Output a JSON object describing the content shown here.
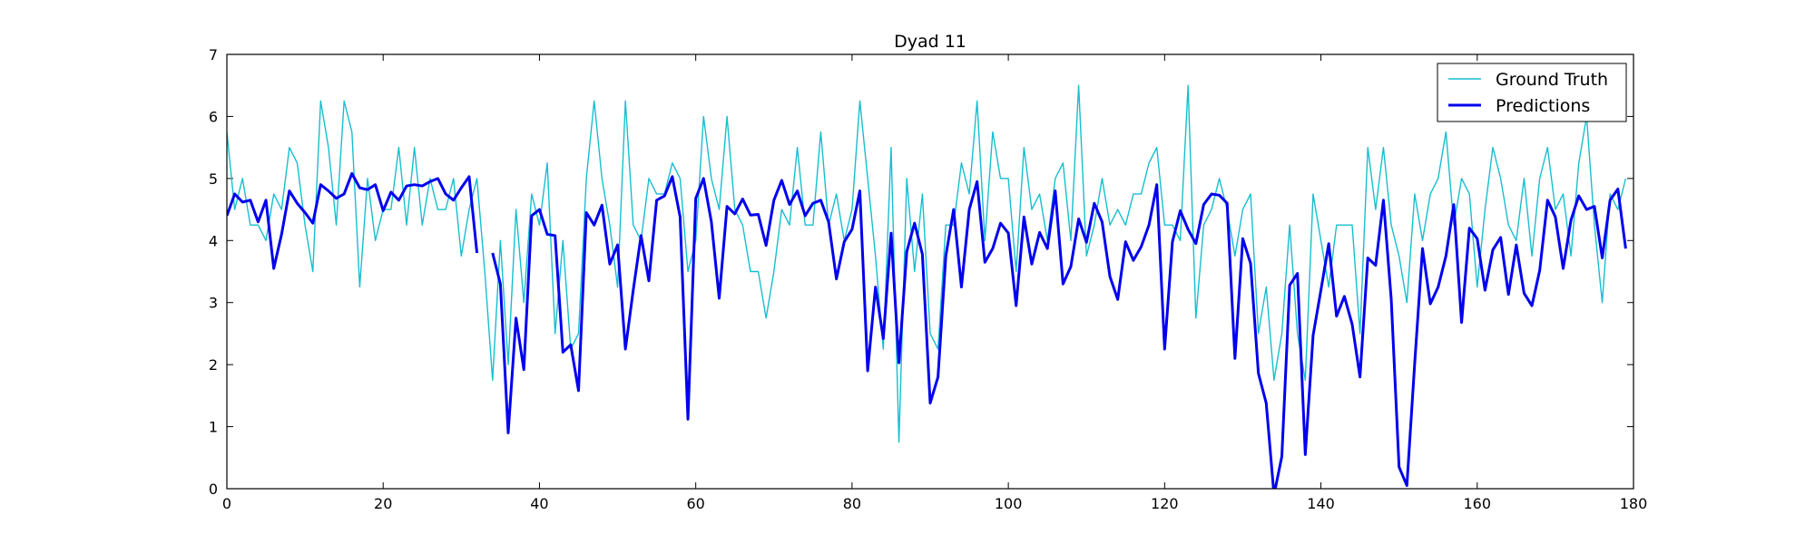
{
  "chart_data": {
    "type": "line",
    "title": "Dyad 11",
    "xlabel": "",
    "ylabel": "",
    "xlim": [
      0,
      180
    ],
    "ylim": [
      0,
      7
    ],
    "xticks": [
      0,
      20,
      40,
      60,
      80,
      100,
      120,
      140,
      160,
      180
    ],
    "yticks": [
      0,
      1,
      2,
      3,
      4,
      5,
      6,
      7
    ],
    "grid": false,
    "legend_position": "top-right",
    "series": [
      {
        "name": "Ground Truth",
        "color": "#17becf",
        "line_width": "thin",
        "values": [
          5.75,
          4.5,
          5.0,
          4.25,
          4.25,
          4.0,
          4.75,
          4.5,
          5.5,
          5.25,
          4.25,
          3.5,
          6.25,
          5.5,
          4.25,
          6.25,
          5.75,
          3.25,
          5.0,
          4.0,
          4.5,
          4.5,
          5.5,
          4.25,
          5.5,
          4.25,
          5.0,
          4.5,
          4.5,
          5.0,
          3.75,
          4.5,
          5.0,
          3.5,
          1.75,
          4.0,
          2.0,
          4.5,
          3.0,
          4.75,
          4.25,
          5.25,
          2.5,
          4.0,
          2.25,
          2.5,
          5.0,
          6.25,
          5.0,
          4.25,
          3.25,
          6.25,
          4.25,
          4.0,
          5.0,
          4.75,
          4.75,
          5.25,
          5.0,
          3.5,
          4.0,
          6.0,
          5.0,
          4.5,
          6.0,
          4.5,
          4.25,
          3.5,
          3.5,
          2.75,
          3.5,
          4.5,
          4.25,
          5.5,
          4.25,
          4.25,
          5.75,
          4.25,
          4.75,
          4.0,
          4.5,
          6.25,
          5.0,
          3.75,
          2.25,
          5.5,
          0.75,
          5.0,
          3.5,
          4.75,
          2.5,
          2.25,
          4.25,
          4.25,
          5.25,
          4.75,
          6.25,
          4.0,
          5.75,
          5.0,
          5.0,
          3.5,
          5.5,
          4.5,
          4.75,
          4.0,
          5.0,
          5.25,
          4.0,
          6.5,
          3.75,
          4.25,
          5.0,
          4.25,
          4.5,
          4.25,
          4.75,
          4.75,
          5.25,
          5.5,
          4.25,
          4.25,
          4.0,
          6.5,
          2.75,
          4.25,
          4.5,
          5.0,
          4.5,
          3.75,
          4.5,
          4.75,
          2.5,
          3.25,
          1.75,
          2.5,
          4.25,
          2.5,
          1.75,
          4.75,
          4.0,
          3.25,
          4.25,
          4.25,
          4.25,
          2.5,
          5.5,
          4.5,
          5.5,
          4.25,
          3.75,
          3.0,
          4.75,
          4.0,
          4.75,
          5.0,
          5.75,
          4.25,
          5.0,
          4.75,
          3.25,
          4.5,
          5.5,
          5.0,
          4.25,
          4.0,
          5.0,
          3.75,
          5.0,
          5.5,
          4.5,
          4.75,
          3.75,
          5.25,
          6.0,
          4.25,
          3.0,
          4.75,
          4.5,
          5.0
        ]
      },
      {
        "name": "Predictions",
        "color": "#0000ee",
        "line_width": "thick",
        "values": [
          4.4,
          4.75,
          4.62,
          4.65,
          4.3,
          4.65,
          3.55,
          4.1,
          4.8,
          4.6,
          4.45,
          4.28,
          4.9,
          4.8,
          4.68,
          4.75,
          5.08,
          4.85,
          4.82,
          4.9,
          4.48,
          4.78,
          4.65,
          4.88,
          4.9,
          4.88,
          4.95,
          5.0,
          4.75,
          4.65,
          4.85,
          5.03,
          3.8,
          null,
          3.8,
          3.3,
          0.9,
          2.75,
          1.92,
          4.4,
          4.5,
          4.1,
          4.08,
          2.2,
          2.32,
          1.58,
          4.45,
          4.25,
          4.57,
          3.62,
          3.93,
          2.25,
          3.2,
          4.08,
          3.35,
          4.65,
          4.72,
          5.03,
          4.38,
          1.12,
          4.68,
          5.0,
          4.3,
          3.07,
          4.55,
          4.43,
          4.67,
          4.41,
          4.42,
          3.92,
          4.65,
          4.97,
          4.58,
          4.8,
          4.4,
          4.6,
          4.65,
          4.3,
          3.38,
          3.98,
          4.18,
          4.8,
          1.9,
          3.25,
          2.42,
          4.12,
          2.03,
          3.82,
          4.28,
          3.78,
          1.38,
          1.8,
          3.75,
          4.5,
          3.25,
          4.5,
          4.95,
          3.65,
          3.87,
          4.28,
          4.12,
          2.95,
          4.38,
          3.62,
          4.13,
          3.87,
          4.8,
          3.3,
          3.58,
          4.35,
          3.97,
          4.6,
          4.3,
          3.42,
          3.05,
          3.98,
          3.68,
          3.9,
          4.25,
          4.9,
          2.25,
          3.98,
          4.48,
          4.18,
          3.95,
          4.58,
          4.75,
          4.73,
          4.6,
          2.1,
          4.03,
          3.63,
          1.86,
          1.38,
          -0.1,
          0.52,
          3.28,
          3.47,
          0.55,
          2.47,
          3.2,
          3.95,
          2.78,
          3.1,
          2.65,
          1.8,
          3.72,
          3.6,
          4.65,
          3.05,
          0.35,
          0.05,
          2.02,
          3.87,
          2.98,
          3.25,
          3.75,
          4.58,
          2.68,
          4.2,
          4.03,
          3.2,
          3.85,
          4.05,
          3.13,
          3.93,
          3.15,
          2.95,
          3.52,
          4.65,
          4.38,
          3.55,
          4.33,
          4.72,
          4.5,
          4.55,
          3.72,
          4.65,
          4.83,
          3.87
        ]
      }
    ]
  }
}
